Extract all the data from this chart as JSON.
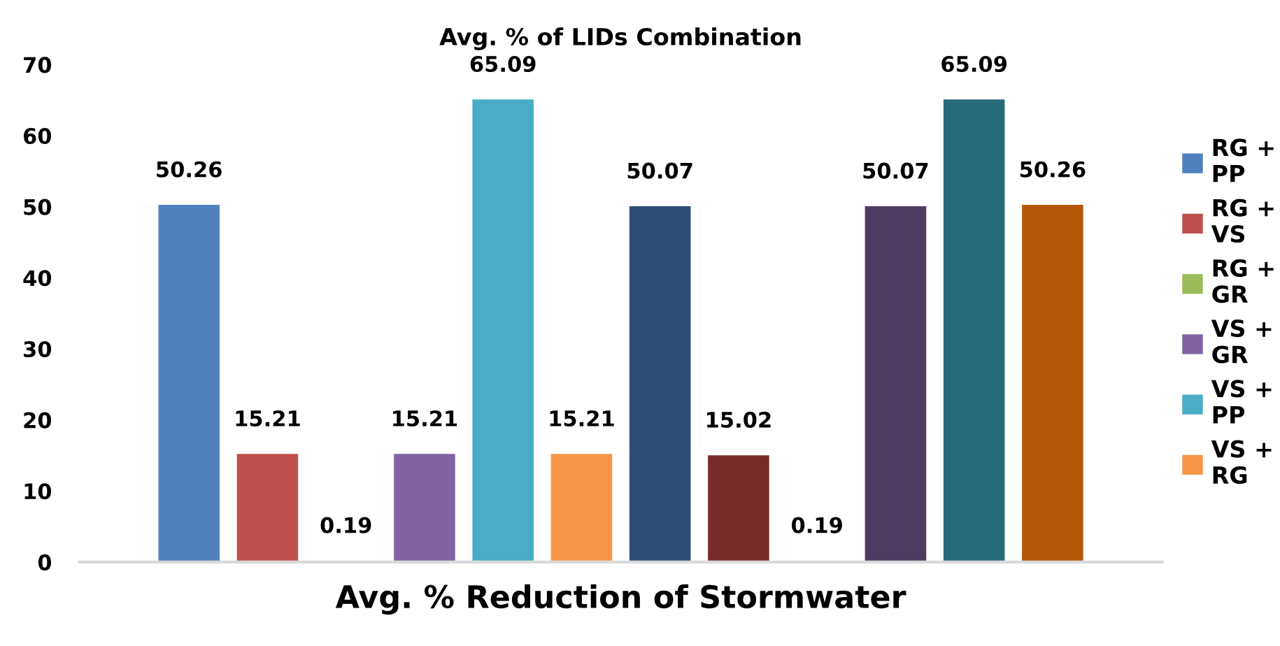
{
  "chart_data": {
    "type": "bar",
    "title": "Avg. % of LIDs Combination",
    "xlabel": "Avg. % Reduction of Stormwater",
    "categories": [
      null
    ],
    "series": [
      {
        "name": "RG + PP",
        "color": "#4f81bd",
        "values": [
          50.26
        ]
      },
      {
        "name": "RG + VS",
        "color": "#c0504d",
        "values": [
          15.21
        ]
      },
      {
        "name": "RG + GR",
        "color": "#9bbb59",
        "values": [
          0.19
        ]
      },
      {
        "name": "VS + GR",
        "color": "#8064a2",
        "values": [
          15.21
        ]
      },
      {
        "name": "VS + PP",
        "color": "#4bacc6",
        "values": [
          65.09
        ]
      },
      {
        "name": "VS + RG",
        "color": "#f79646",
        "values": [
          15.21
        ]
      },
      {
        "color": "#2c4d75",
        "values": [
          50.07
        ]
      },
      {
        "color": "#772c2a",
        "values": [
          15.02
        ]
      },
      {
        "color": "#5f7530",
        "values": [
          0.19
        ]
      },
      {
        "color": "#4d3b62",
        "values": [
          50.07
        ]
      },
      {
        "color": "#276a7c",
        "values": [
          65.09
        ]
      },
      {
        "color": "#b65708",
        "values": [
          50.26
        ]
      }
    ],
    "ylim": [
      0,
      70
    ],
    "yticks": [
      0,
      10,
      20,
      30,
      40,
      50,
      60,
      70
    ],
    "data_labels": true,
    "grid": false,
    "legend": "right"
  }
}
